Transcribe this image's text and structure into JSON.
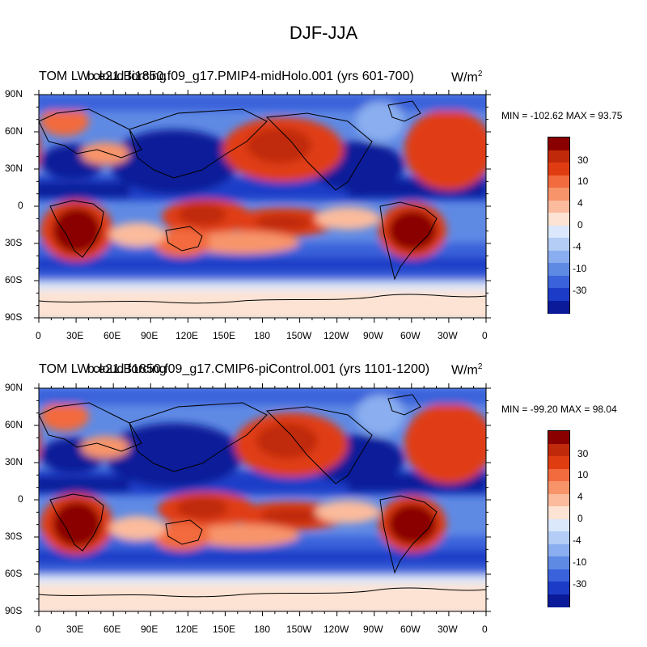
{
  "figure": {
    "title": "DJF-JJA",
    "units_base": "W/m",
    "units_exp": "2"
  },
  "panels": [
    {
      "left_label": "TOM LW cloud forcing",
      "case_label": "b.e21.Bi1850.f09_g17.PMIP4-midHolo.001 (yrs 601-700)",
      "min_max": "MIN = -102.62 MAX =  93.75"
    },
    {
      "left_label": "TOM LW cloud forcing",
      "case_label": "b.e21.B1850.f09_g17.CMIP6-piControl.001 (yrs 1101-1200)",
      "min_max": "MIN = -99.20 MAX =  98.04"
    }
  ],
  "axes": {
    "lat_labels": [
      "90N",
      "60N",
      "30N",
      "0",
      "30S",
      "60S",
      "90S"
    ],
    "lon_labels": [
      "0",
      "30E",
      "60E",
      "90E",
      "120E",
      "150E",
      "180",
      "150W",
      "120W",
      "90W",
      "60W",
      "30W",
      "0"
    ]
  },
  "colorbar": {
    "labels": [
      "30",
      "10",
      "4",
      "0",
      "-4",
      "-10",
      "-30"
    ],
    "colors": [
      "#8a0000",
      "#c02a0b",
      "#e03c12",
      "#f26b3e",
      "#f8946a",
      "#fbbb9c",
      "#fde3d3",
      "#dbe8fb",
      "#b3cdf6",
      "#8aaeef",
      "#5f8ae4",
      "#3a62da",
      "#1c3cc8",
      "#0a1a99"
    ]
  },
  "chart_data": [
    {
      "type": "heatmap",
      "title": "DJF-JJA",
      "series_label": "TOM LW cloud forcing",
      "case": "b.e21.Bi1850.f09_g17.PMIP4-midHolo.001 (yrs 601-700)",
      "units": "W/m2",
      "min": -102.62,
      "max": 93.75,
      "x_range": [
        "0",
        "0"
      ],
      "y_range": [
        "90S",
        "90N"
      ],
      "contour_levels": [
        -50,
        -40,
        -30,
        -20,
        -10,
        -6,
        -4,
        -2,
        0,
        2,
        4,
        6,
        10,
        20,
        30,
        40
      ]
    },
    {
      "type": "heatmap",
      "title": "DJF-JJA",
      "series_label": "TOM LW cloud forcing",
      "case": "b.e21.B1850.f09_g17.CMIP6-piControl.001 (yrs 1101-1200)",
      "units": "W/m2",
      "min": -99.2,
      "max": 98.04,
      "x_range": [
        "0",
        "0"
      ],
      "y_range": [
        "90S",
        "90N"
      ],
      "contour_levels": [
        -50,
        -40,
        -30,
        -20,
        -10,
        -6,
        -4,
        -2,
        0,
        2,
        4,
        6,
        10,
        20,
        30,
        40
      ]
    }
  ]
}
